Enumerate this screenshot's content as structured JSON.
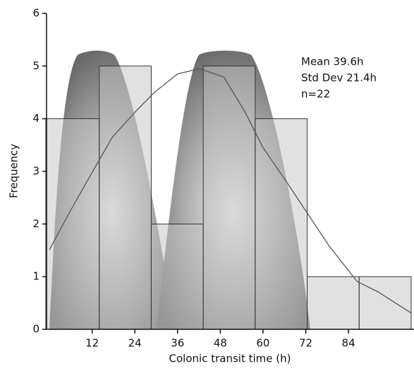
{
  "chart_data": {
    "type": "histogram",
    "bins": [
      -1,
      14,
      28.6,
      43.2,
      57.8,
      72.4,
      87,
      101.6
    ],
    "values": [
      4,
      5,
      2,
      5,
      4,
      1,
      1
    ],
    "color": "#c4c4c4",
    "xlabel": "Colonic transit time (h)",
    "ylabel": "Frequency",
    "xlim": [
      -0.8,
      102.4
    ],
    "ylim": [
      0,
      6
    ],
    "xticks": [
      12,
      24,
      36,
      48,
      60,
      72,
      84
    ],
    "yticks": [
      0,
      1,
      2,
      3,
      4,
      5,
      6
    ],
    "curve": {
      "color": "#555555",
      "x": [
        0,
        5.9,
        12,
        17.7,
        24,
        29.5,
        36,
        42.2,
        49,
        55,
        60,
        66.8,
        72,
        78.6,
        86.4,
        92.3,
        101.6
      ],
      "values": [
        1.51,
        2.25,
        2.98,
        3.65,
        4.12,
        4.5,
        4.85,
        4.95,
        4.79,
        4.12,
        3.45,
        2.78,
        2.25,
        1.58,
        0.91,
        0.71,
        0.31
      ]
    },
    "annotations": [
      "Mean 39.6h",
      "Std Dev  21.4h",
      "n=22"
    ]
  }
}
